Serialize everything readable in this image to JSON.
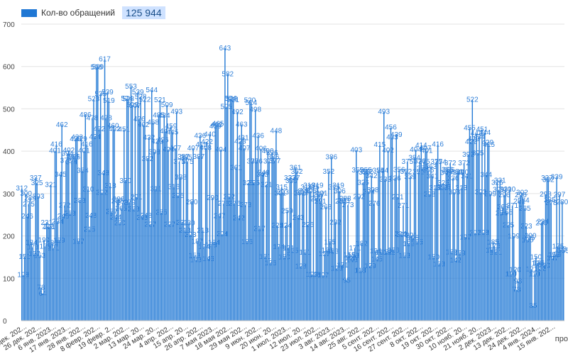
{
  "legend": {
    "series_label": "Кол-во обращений",
    "total": "125 944",
    "color": "#1f77d4"
  },
  "overflow_label": "про",
  "chart_data": {
    "type": "bar",
    "series": [
      {
        "name": "Кол-во обращений",
        "values": [
          312,
          108,
          151,
          300,
          246,
          275,
          289,
          184,
          173,
          157,
          337,
          325,
          293,
          153,
          78,
          64,
          190,
          175,
          231,
          222,
          221,
          321,
          183,
          171,
          401,
          416,
          234,
          189,
          345,
          462,
          246,
          272,
          378,
          394,
          402,
          253,
          374,
          388,
          386,
          429,
          433,
          187,
          283,
          429,
          354,
          401,
          486,
          416,
          310,
          215,
          248,
          478,
          523,
          434,
          598,
          599,
          452,
          535,
          302,
          348,
          617,
          478,
          539,
          519,
          318,
          257,
          460,
          452,
          244,
          282,
          286,
          230,
          265,
          278,
          451,
          330,
          524,
          523,
          279,
          553,
          509,
          263,
          507,
          291,
          539,
          476,
          528,
          243,
          462,
          522,
          248,
          382,
          432,
          227,
          544,
          468,
          398,
          311,
          423,
          485,
          521,
          255,
          426,
          484,
          447,
          509,
          404,
          227,
          459,
          445,
          316,
          407,
          493,
          295,
          375,
          338,
          231,
          387,
          213,
          385,
          375,
          230,
          203,
          280,
          407,
          153,
          143,
          187,
          387,
          436,
          415,
          213,
          174,
          408,
          422,
          146,
          440,
          178,
          290,
          184,
          459,
          462,
          465,
          247,
          404,
          204,
          276,
          643,
          505,
          582,
          292,
          524,
          523,
          521,
          276,
          361,
          492,
          242,
          423,
          463,
          431,
          407,
          273,
          186,
          325,
          520,
          514,
          376,
          325,
          498,
          376,
          436,
          217,
          406,
          345,
          349,
          151,
          321,
          400,
          376,
          136,
          396,
          386,
          377,
          448,
          224,
          174,
          301,
          315,
          303,
          150,
          224,
          259,
          171,
          337,
          330,
          165,
          337,
          361,
          352,
          243,
          301,
          128,
          302,
          306,
          161,
          315,
          226,
          319,
          306,
          109,
          315,
          108,
          287,
          319,
          297,
          281,
          301,
          107,
          157,
          268,
          166,
          352,
          185,
          386,
          163,
          315,
          232,
          123,
          319,
          306,
          281,
          131,
          283,
          288,
          95,
          273,
          155,
          147,
          143,
          153,
          171,
          403,
          355,
          292,
          118,
          182,
          326,
          350,
          355,
          352,
          304,
          129,
          342,
          308,
          276,
          164,
          145,
          354,
          415,
          161,
          354,
          493,
          333,
          162,
          402,
          161,
          456,
          433,
          166,
          336,
          439,
          291,
          356,
          204,
          203,
          271,
          153,
          352,
          375,
          181,
          339,
          201,
          195,
          384,
          404,
          185,
          351,
          376,
          414,
          359,
          375,
          407,
          401,
          355,
          298,
          363,
          341,
          150,
          313,
          375,
          416,
          133,
          374,
          313,
          325,
          316,
          349,
          356,
          355,
          372,
          162,
          336,
          303,
          142,
          351,
          349,
          159,
          313,
          350,
          372,
          197,
          341,
          392,
          455,
          422,
          522,
          429,
          207,
          442,
          395,
          434,
          303,
          451,
          208,
          444,
          344,
          420,
          415,
          299,
          166,
          185,
          176,
          161,
          326,
          309,
          331,
          254,
          268,
          296,
          310,
          255,
          225,
          310,
          110,
          271,
          199,
          120,
          73,
          93,
          281,
          296,
          302,
          284,
          265,
          223,
          190,
          195,
          200,
          121,
          35,
          110,
          150,
          135,
          136,
          122,
          230,
          234,
          130,
          298,
          337,
          332,
          285,
          278,
          147,
          155,
          156,
          339,
          175,
          297,
          168,
          280,
          165
        ]
      }
    ],
    "x_tick_labels": [
      "дек. 202...",
      "26 дек. 202...",
      "6 янв. 2023...",
      "17 янв. 2023...",
      "28 янв. 202...",
      "8 февр. 202...",
      "19 февр. 2...",
      "2 мар. 202...",
      "13 мар. 20...",
      "24 мар. 20...",
      "4 апр. 202...",
      "15 апр. 20...",
      "26 апр. 202...",
      "7 мая 2023...",
      "18 мая 202...",
      "29 мая 202...",
      "9 июн. 202...",
      "20 июн. 20...",
      "1 июл. 2023...",
      "12 июл. 20...",
      "23 июл. 202...",
      "3 авг. 2023...",
      "14 авг. 2023...",
      "25 авг. 202...",
      "5 сент. 202...",
      "16 сент. 202...",
      "27 сент. 202...",
      "8 окт. 202...",
      "19 окт. 202...",
      "30 окт. 202...",
      "10 нояб. 20...",
      "21 нояб. 20...",
      "2 дек. 2023...",
      "13 дек. 202...",
      "24 дек. 202...",
      "4 янв. 2024...",
      "15 янв. 202..."
    ],
    "y_ticks": [
      0,
      100,
      200,
      300,
      400,
      500,
      600,
      700
    ],
    "ylim": [
      0,
      700
    ],
    "grid": "horizontal",
    "legend_position": "top-left",
    "bar_color": "#1f77d4",
    "label_color": "#2f7fd8"
  }
}
